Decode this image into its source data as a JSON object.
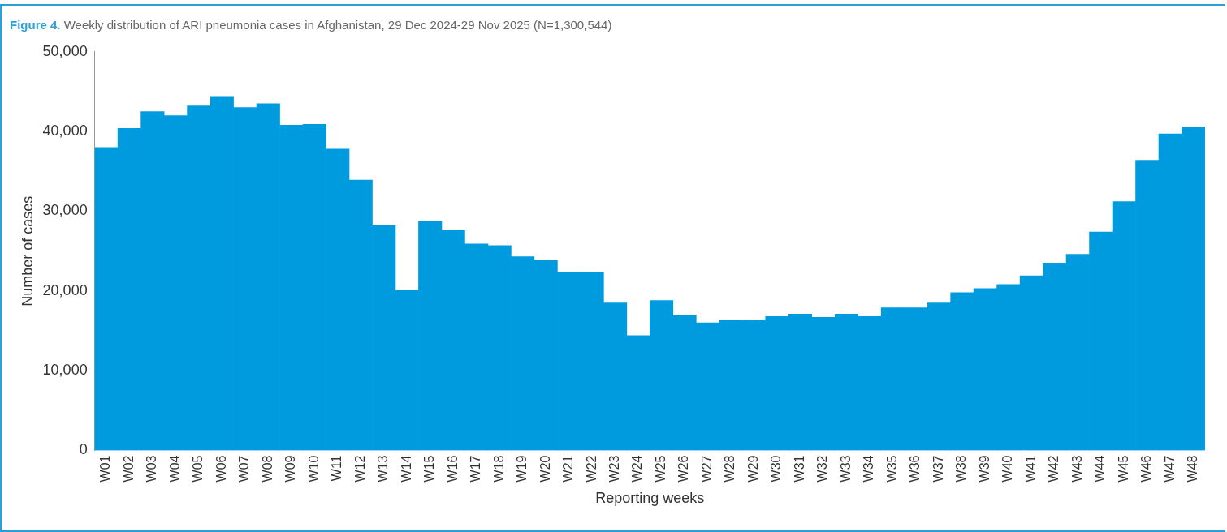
{
  "chart_data": {
    "type": "bar",
    "title": "Figure 4. Weekly distribution of ARI pneumonia cases in Afghanistan, 29 Dec 2024-29 Nov 2025 (N=1,300,544)",
    "xlabel": "Reporting weeks",
    "ylabel": "Number of cases",
    "categories": [
      "W01",
      "W02",
      "W03",
      "W04",
      "W05",
      "W06",
      "W07",
      "W08",
      "W09",
      "W10",
      "W11",
      "W12",
      "W13",
      "W14",
      "W15",
      "W16",
      "W17",
      "W18",
      "W19",
      "W20",
      "W21",
      "W22",
      "W23",
      "W24",
      "W25",
      "W26",
      "W27",
      "W28",
      "W29",
      "W30",
      "W31",
      "W32",
      "W33",
      "W34",
      "W35",
      "W36",
      "W37",
      "W38",
      "W39",
      "W40",
      "W41",
      "W42",
      "W43",
      "W44",
      "W45",
      "W46",
      "W47",
      "W48"
    ],
    "values": [
      38000,
      40400,
      42500,
      42000,
      43200,
      44400,
      43000,
      43500,
      40800,
      40900,
      37800,
      33900,
      28200,
      20100,
      28800,
      27600,
      25900,
      25700,
      24300,
      23900,
      22300,
      22300,
      18500,
      14400,
      18800,
      16900,
      16000,
      16400,
      16300,
      16800,
      17100,
      16700,
      17100,
      16800,
      17900,
      17900,
      18500,
      19800,
      20300,
      20800,
      21900,
      23500,
      24600,
      27400,
      31200,
      36400,
      39700,
      40600
    ],
    "color": "#009bde",
    "ylim": [
      0,
      50000
    ],
    "yticks": [
      {
        "value": 0,
        "label": "0"
      },
      {
        "value": 10000,
        "label": "10,000"
      },
      {
        "value": 20000,
        "label": "20,000"
      },
      {
        "value": 30000,
        "label": "30,000"
      },
      {
        "value": 40000,
        "label": "40,000"
      },
      {
        "value": 50000,
        "label": "50,000"
      }
    ],
    "grid": false,
    "legend": false
  }
}
